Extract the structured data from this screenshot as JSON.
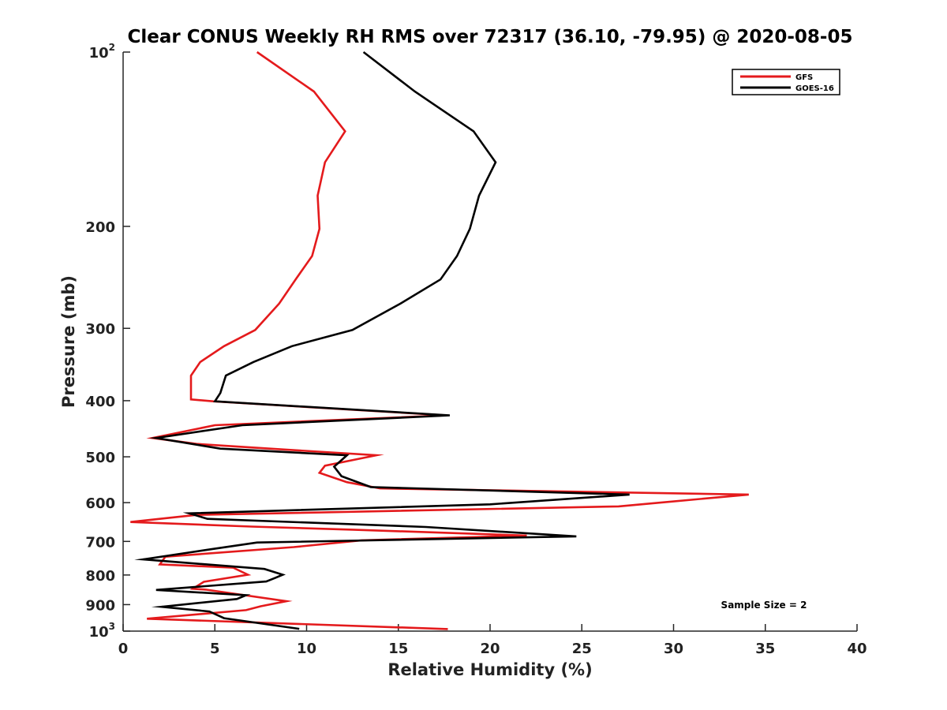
{
  "chart_data": {
    "type": "line",
    "title": "Clear CONUS Weekly RH RMS over 72317 (36.10, -79.95) @ 2020-08-05",
    "xlabel": "Relative Humidity (%)",
    "ylabel": "Pressure (mb)",
    "xlim": [
      0,
      40
    ],
    "ylim": [
      100,
      1000
    ],
    "y_scale": "log",
    "y_reversed": true,
    "grid": false,
    "legend_position": "top-right",
    "x_ticks": [
      0,
      5,
      10,
      15,
      20,
      25,
      30,
      35,
      40
    ],
    "x_tick_labels": [
      "0",
      "5",
      "10",
      "15",
      "20",
      "25",
      "30",
      "35",
      "40"
    ],
    "y_ticks": [
      100,
      200,
      300,
      400,
      500,
      600,
      700,
      800,
      900,
      1000
    ],
    "y_tick_labels": [
      {
        "base": "10",
        "sup": "2"
      },
      {
        "base": "200",
        "sup": ""
      },
      {
        "base": "300",
        "sup": ""
      },
      {
        "base": "400",
        "sup": ""
      },
      {
        "base": "500",
        "sup": ""
      },
      {
        "base": "600",
        "sup": ""
      },
      {
        "base": "700",
        "sup": ""
      },
      {
        "base": "800",
        "sup": ""
      },
      {
        "base": "900",
        "sup": ""
      },
      {
        "base": "10",
        "sup": "3"
      }
    ],
    "annotations": [
      "Sample Size = 2"
    ],
    "series": [
      {
        "name": "GFS",
        "color": "#e41a1c",
        "points": [
          [
            7.3,
            100
          ],
          [
            10.4,
            117
          ],
          [
            12.1,
            137
          ],
          [
            11.0,
            155
          ],
          [
            10.6,
            177
          ],
          [
            10.7,
            202
          ],
          [
            10.3,
            225
          ],
          [
            9.4,
            247
          ],
          [
            8.5,
            272
          ],
          [
            7.2,
            302
          ],
          [
            5.5,
            322
          ],
          [
            4.2,
            343
          ],
          [
            3.7,
            362
          ],
          [
            3.7,
            398
          ],
          [
            4.9,
            401
          ],
          [
            17.6,
            424
          ],
          [
            5.0,
            441
          ],
          [
            1.6,
            464
          ],
          [
            4.0,
            475
          ],
          [
            8.0,
            484
          ],
          [
            13.8,
            497
          ],
          [
            11.0,
            518
          ],
          [
            10.7,
            533
          ],
          [
            12.2,
            553
          ],
          [
            14.0,
            567
          ],
          [
            34.1,
            581
          ],
          [
            27.0,
            609
          ],
          [
            4.0,
            630
          ],
          [
            0.4,
            648
          ],
          [
            7.0,
            660
          ],
          [
            12.5,
            668
          ],
          [
            22.0,
            684
          ],
          [
            13.0,
            697
          ],
          [
            9.3,
            716
          ],
          [
            2.3,
            744
          ],
          [
            2.0,
            767
          ],
          [
            6.0,
            777
          ],
          [
            6.8,
            799
          ],
          [
            4.4,
            822
          ],
          [
            3.8,
            845
          ],
          [
            4.5,
            848
          ],
          [
            8.9,
            888
          ],
          [
            7.5,
            906
          ],
          [
            6.7,
            920
          ],
          [
            1.3,
            952
          ],
          [
            17.7,
            992
          ]
        ]
      },
      {
        "name": "GOES-16",
        "color": "#000000",
        "points": [
          [
            13.1,
            100
          ],
          [
            15.9,
            117
          ],
          [
            19.1,
            137
          ],
          [
            20.3,
            155
          ],
          [
            19.4,
            177
          ],
          [
            18.9,
            202
          ],
          [
            18.2,
            225
          ],
          [
            17.3,
            247
          ],
          [
            15.1,
            272
          ],
          [
            12.5,
            302
          ],
          [
            9.2,
            322
          ],
          [
            7.1,
            343
          ],
          [
            5.6,
            362
          ],
          [
            5.3,
            388
          ],
          [
            5.0,
            401
          ],
          [
            17.8,
            424
          ],
          [
            6.5,
            441
          ],
          [
            1.8,
            464
          ],
          [
            5.3,
            484
          ],
          [
            12.2,
            497
          ],
          [
            11.8,
            510
          ],
          [
            11.5,
            520
          ],
          [
            11.9,
            540
          ],
          [
            13.5,
            564
          ],
          [
            27.6,
            581
          ],
          [
            20.0,
            604
          ],
          [
            3.6,
            626
          ],
          [
            4.6,
            640
          ],
          [
            16.5,
            661
          ],
          [
            24.7,
            686
          ],
          [
            7.3,
            703
          ],
          [
            4.8,
            722
          ],
          [
            1.1,
            752
          ],
          [
            7.7,
            781
          ],
          [
            8.7,
            799
          ],
          [
            8.3,
            809
          ],
          [
            7.8,
            821
          ],
          [
            1.8,
            849
          ],
          [
            6.7,
            867
          ],
          [
            6.2,
            880
          ],
          [
            2.1,
            908
          ],
          [
            4.7,
            925
          ],
          [
            5.5,
            950
          ],
          [
            9.6,
            991
          ]
        ]
      }
    ]
  }
}
